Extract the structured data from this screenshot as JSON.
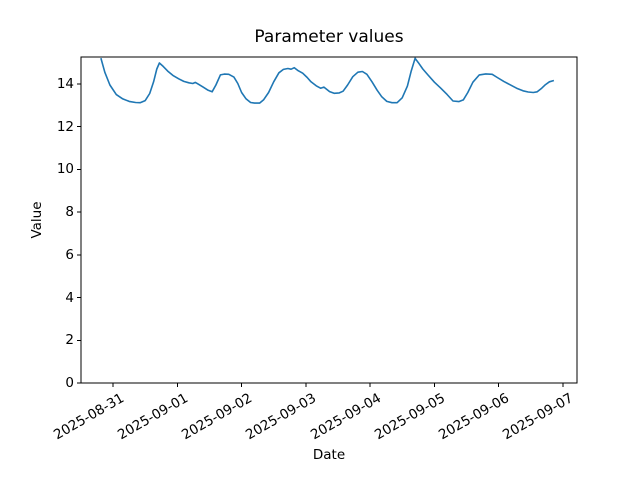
{
  "chart_data": {
    "type": "line",
    "title": "Parameter values",
    "xlabel": "Date",
    "ylabel": "Value",
    "grid": false,
    "legend": "none",
    "background_color": "#ffffff",
    "axis_color": "#000000",
    "x_unit": "days since 2025-08-31 00:00",
    "xlim_days": [
      -0.5,
      7.22
    ],
    "ylim": [
      0,
      15.26
    ],
    "x_tick_days": [
      0,
      1,
      2,
      3,
      4,
      5,
      6,
      7
    ],
    "x_tick_labels": [
      "2025-08-31",
      "2025-09-01",
      "2025-09-02",
      "2025-09-03",
      "2025-09-04",
      "2025-09-05",
      "2025-09-06",
      "2025-09-07"
    ],
    "x_tick_label_rotation_deg": 30,
    "y_ticks": [
      0,
      2,
      4,
      6,
      8,
      10,
      12,
      14
    ],
    "series": [
      {
        "name": "parameter-values",
        "color": "#1f77b4",
        "line_width": 1.6,
        "x_days": [
          -0.19,
          -0.13,
          -0.05,
          0.05,
          0.15,
          0.25,
          0.35,
          0.42,
          0.5,
          0.57,
          0.63,
          0.68,
          0.72,
          0.78,
          0.85,
          0.93,
          1.02,
          1.1,
          1.18,
          1.24,
          1.28,
          1.33,
          1.4,
          1.48,
          1.54,
          1.6,
          1.67,
          1.73,
          1.8,
          1.88,
          1.94,
          2.0,
          2.07,
          2.14,
          2.2,
          2.28,
          2.34,
          2.42,
          2.5,
          2.58,
          2.65,
          2.72,
          2.77,
          2.82,
          2.88,
          2.95,
          3.02,
          3.08,
          3.16,
          3.23,
          3.28,
          3.37,
          3.44,
          3.52,
          3.58,
          3.65,
          3.73,
          3.81,
          3.88,
          3.95,
          4.03,
          4.11,
          4.18,
          4.26,
          4.34,
          4.42,
          4.5,
          4.58,
          4.64,
          4.7,
          4.75,
          4.82,
          4.9,
          5.0,
          5.1,
          5.2,
          5.29,
          5.38,
          5.45,
          5.52,
          5.6,
          5.7,
          5.8,
          5.9,
          5.98,
          6.08,
          6.18,
          6.28,
          6.38,
          6.46,
          6.54,
          6.6,
          6.67,
          6.73,
          6.79,
          6.86
        ],
        "y": [
          15.21,
          14.55,
          13.95,
          13.5,
          13.3,
          13.18,
          13.13,
          13.12,
          13.22,
          13.55,
          14.1,
          14.7,
          14.98,
          14.82,
          14.6,
          14.4,
          14.24,
          14.12,
          14.05,
          14.02,
          14.07,
          13.98,
          13.85,
          13.7,
          13.63,
          13.95,
          14.42,
          14.46,
          14.45,
          14.32,
          14.02,
          13.6,
          13.3,
          13.13,
          13.1,
          13.1,
          13.25,
          13.6,
          14.1,
          14.52,
          14.68,
          14.72,
          14.69,
          14.76,
          14.62,
          14.5,
          14.3,
          14.1,
          13.91,
          13.8,
          13.85,
          13.64,
          13.56,
          13.58,
          13.66,
          13.95,
          14.34,
          14.55,
          14.58,
          14.45,
          14.1,
          13.7,
          13.4,
          13.18,
          13.12,
          13.12,
          13.35,
          13.9,
          14.6,
          15.2,
          15.0,
          14.7,
          14.42,
          14.08,
          13.8,
          13.5,
          13.2,
          13.17,
          13.25,
          13.6,
          14.08,
          14.42,
          14.47,
          14.45,
          14.3,
          14.12,
          13.96,
          13.8,
          13.68,
          13.62,
          13.6,
          13.63,
          13.8,
          13.97,
          14.1,
          14.16
        ]
      }
    ]
  }
}
